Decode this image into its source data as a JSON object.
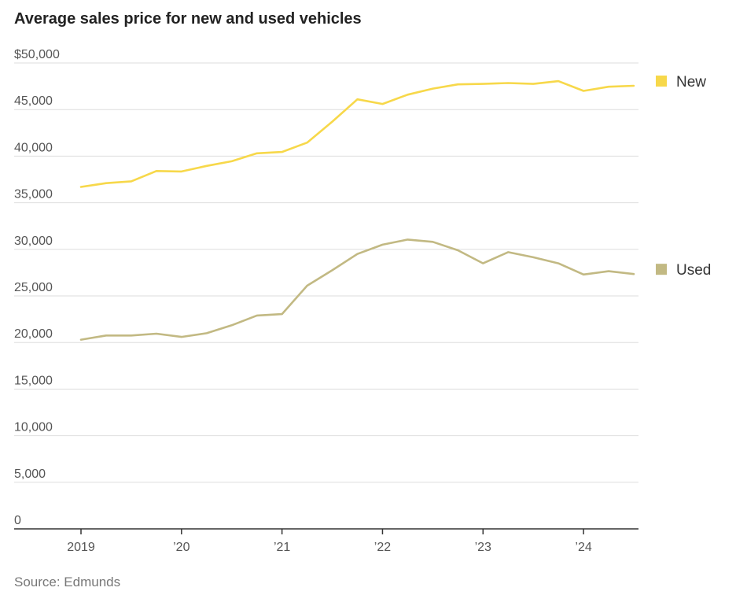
{
  "title": "Average sales price for new and used vehicles",
  "source": "Source: Edmunds",
  "chart_data": {
    "type": "line",
    "title": "Average sales price for new and used vehicles",
    "xlabel": "",
    "ylabel": "",
    "ylim": [
      0,
      50000
    ],
    "xlim": [
      2019.0,
      2024.5
    ],
    "y_ticks": [
      {
        "value": 50000,
        "label": "$50,000"
      },
      {
        "value": 45000,
        "label": "45,000"
      },
      {
        "value": 40000,
        "label": "40,000"
      },
      {
        "value": 35000,
        "label": "35,000"
      },
      {
        "value": 30000,
        "label": "30,000"
      },
      {
        "value": 25000,
        "label": "25,000"
      },
      {
        "value": 20000,
        "label": "20,000"
      },
      {
        "value": 15000,
        "label": "15,000"
      },
      {
        "value": 10000,
        "label": "10,000"
      },
      {
        "value": 5000,
        "label": "5,000"
      },
      {
        "value": 0,
        "label": "0"
      }
    ],
    "x_ticks": [
      {
        "value": 2019,
        "label": "2019"
      },
      {
        "value": 2020,
        "label": "’20"
      },
      {
        "value": 2021,
        "label": "’21"
      },
      {
        "value": 2022,
        "label": "’22"
      },
      {
        "value": 2023,
        "label": "’23"
      },
      {
        "value": 2024,
        "label": "’24"
      }
    ],
    "grid": "horizontal",
    "legend_position": "right",
    "x": [
      2019.0,
      2019.25,
      2019.5,
      2019.75,
      2020.0,
      2020.25,
      2020.5,
      2020.75,
      2021.0,
      2021.25,
      2021.5,
      2021.75,
      2022.0,
      2022.25,
      2022.5,
      2022.75,
      2023.0,
      2023.25,
      2023.5,
      2023.75,
      2024.0,
      2024.25,
      2024.5
    ],
    "series": [
      {
        "name": "New",
        "color": "#f7d84a",
        "values": [
          36700,
          37100,
          37300,
          38400,
          38350,
          38950,
          39450,
          40300,
          40450,
          41450,
          43700,
          46100,
          45600,
          46600,
          47250,
          47700,
          47750,
          47850,
          47750,
          48050,
          47000,
          47450,
          47550
        ]
      },
      {
        "name": "Used",
        "color": "#c2b983",
        "values": [
          20300,
          20750,
          20750,
          20950,
          20600,
          21000,
          21850,
          22900,
          23050,
          26100,
          27750,
          29500,
          30500,
          31050,
          30800,
          29900,
          28500,
          29700,
          29150,
          28500,
          27300,
          27650,
          27350
        ]
      }
    ]
  }
}
